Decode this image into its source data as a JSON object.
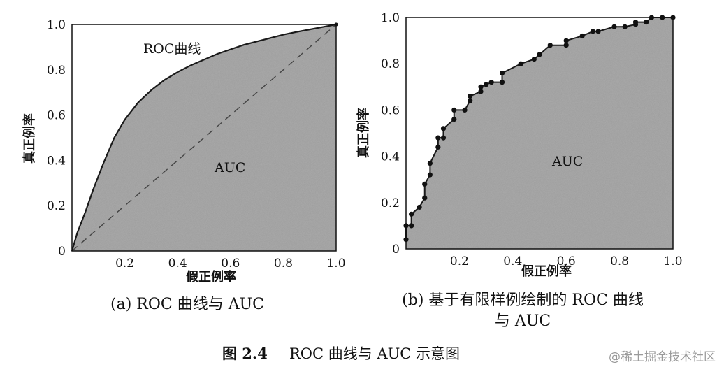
{
  "figure_caption": {
    "label": "图 2.4",
    "text": "ROC 曲线与 AUC 示意图"
  },
  "watermark": "@稀土掘金技术社区",
  "chart_data": [
    {
      "type": "area",
      "subcaption": "(a) ROC 曲线与 AUC",
      "xlabel": "假正例率",
      "ylabel": "真正例率",
      "xlim": [
        0,
        1
      ],
      "ylim": [
        0,
        1
      ],
      "xticks": [
        "0.2",
        "0.4",
        "0.6",
        "0.8",
        "1.0"
      ],
      "yticks": [
        "0",
        "0.2",
        "0.4",
        "0.6",
        "0.8",
        "1.0"
      ],
      "annotations": {
        "curve_label": "ROC曲线",
        "area_label": "AUC"
      },
      "colors": {
        "area": "#9c9c9c",
        "curve": "#1a1a1a",
        "diagonal": "#444444"
      },
      "roc_curve": {
        "x": [
          0,
          0.02,
          0.05,
          0.08,
          0.12,
          0.16,
          0.2,
          0.25,
          0.3,
          0.35,
          0.4,
          0.45,
          0.5,
          0.55,
          0.6,
          0.65,
          0.7,
          0.75,
          0.8,
          0.85,
          0.9,
          0.95,
          1.0
        ],
        "y": [
          0,
          0.08,
          0.17,
          0.27,
          0.39,
          0.5,
          0.58,
          0.655,
          0.71,
          0.755,
          0.79,
          0.82,
          0.845,
          0.87,
          0.89,
          0.91,
          0.925,
          0.94,
          0.955,
          0.967,
          0.978,
          0.989,
          1.0
        ]
      },
      "diagonal": {
        "x": [
          0,
          1
        ],
        "y": [
          0,
          1
        ],
        "style": "dashed"
      }
    },
    {
      "type": "line",
      "subcaption_lines": [
        "(b) 基于有限样例绘制的 ROC 曲线",
        "与 AUC"
      ],
      "xlabel": "假正例率",
      "ylabel": "真正例率",
      "xlim": [
        0,
        1
      ],
      "ylim": [
        0,
        1
      ],
      "xticks": [
        "0.2",
        "0.4",
        "0.6",
        "0.8",
        "1.0"
      ],
      "yticks": [
        "0",
        "0.2",
        "0.4",
        "0.6",
        "0.8",
        "1.0"
      ],
      "annotations": {
        "area_label": "AUC"
      },
      "colors": {
        "area": "#9c9c9c",
        "curve": "#1a1a1a",
        "points": "#111111"
      },
      "points": {
        "x": [
          0,
          0,
          0.02,
          0.02,
          0.05,
          0.07,
          0.07,
          0.09,
          0.09,
          0.12,
          0.12,
          0.14,
          0.14,
          0.18,
          0.18,
          0.22,
          0.24,
          0.24,
          0.28,
          0.28,
          0.3,
          0.32,
          0.36,
          0.36,
          0.43,
          0.48,
          0.5,
          0.54,
          0.6,
          0.6,
          0.66,
          0.7,
          0.72,
          0.78,
          0.82,
          0.86,
          0.86,
          0.9,
          0.92,
          0.96,
          1.0
        ],
        "y": [
          0.04,
          0.1,
          0.1,
          0.15,
          0.18,
          0.22,
          0.28,
          0.32,
          0.37,
          0.44,
          0.48,
          0.48,
          0.52,
          0.56,
          0.6,
          0.6,
          0.64,
          0.66,
          0.68,
          0.7,
          0.71,
          0.72,
          0.72,
          0.76,
          0.8,
          0.82,
          0.84,
          0.88,
          0.88,
          0.9,
          0.92,
          0.94,
          0.94,
          0.96,
          0.96,
          0.97,
          0.98,
          0.98,
          1.0,
          1.0,
          1.0
        ]
      }
    }
  ]
}
